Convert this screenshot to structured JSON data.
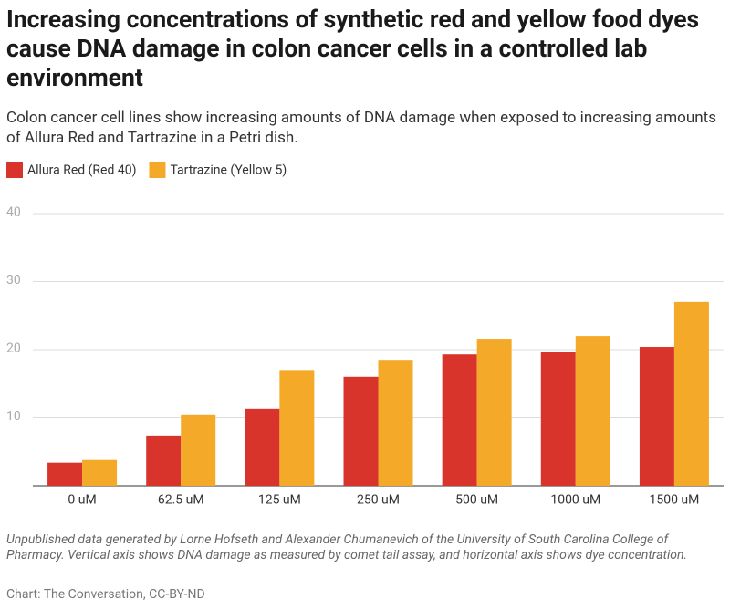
{
  "chart_data": {
    "type": "bar",
    "title": "Increasing concentrations of synthetic red and yellow food dyes cause DNA damage in colon cancer cells in a controlled lab environment",
    "subtitle": "Colon cancer cell lines show increasing amounts of DNA damage when exposed to increasing amounts of Allura Red and Tartrazine in a Petri dish.",
    "categories": [
      "0 uM",
      "62.5 uM",
      "125 uM",
      "250 uM",
      "500 uM",
      "1000 uM",
      "1500 uM"
    ],
    "series": [
      {
        "name": "Allura Red (Red 40)",
        "color": "#d9342b",
        "values": [
          3.4,
          7.4,
          11.3,
          16.0,
          19.3,
          19.7,
          20.4
        ]
      },
      {
        "name": "Tartrazine (Yellow 5)",
        "color": "#f5a928",
        "values": [
          3.8,
          10.5,
          17.0,
          18.5,
          21.6,
          22.0,
          27.0
        ]
      }
    ],
    "ylim": [
      0,
      40
    ],
    "yticks": [
      10,
      20,
      30,
      40
    ],
    "grid": true,
    "notes": "Unpublished data generated by Lorne Hofseth and Alexander Chumanevich of the University of South Carolina College of Pharmacy. Vertical axis shows DNA damage as measured by comet tail assay, and horizontal axis shows dye concentration.",
    "source": "Chart: The Conversation, CC-BY-ND"
  }
}
